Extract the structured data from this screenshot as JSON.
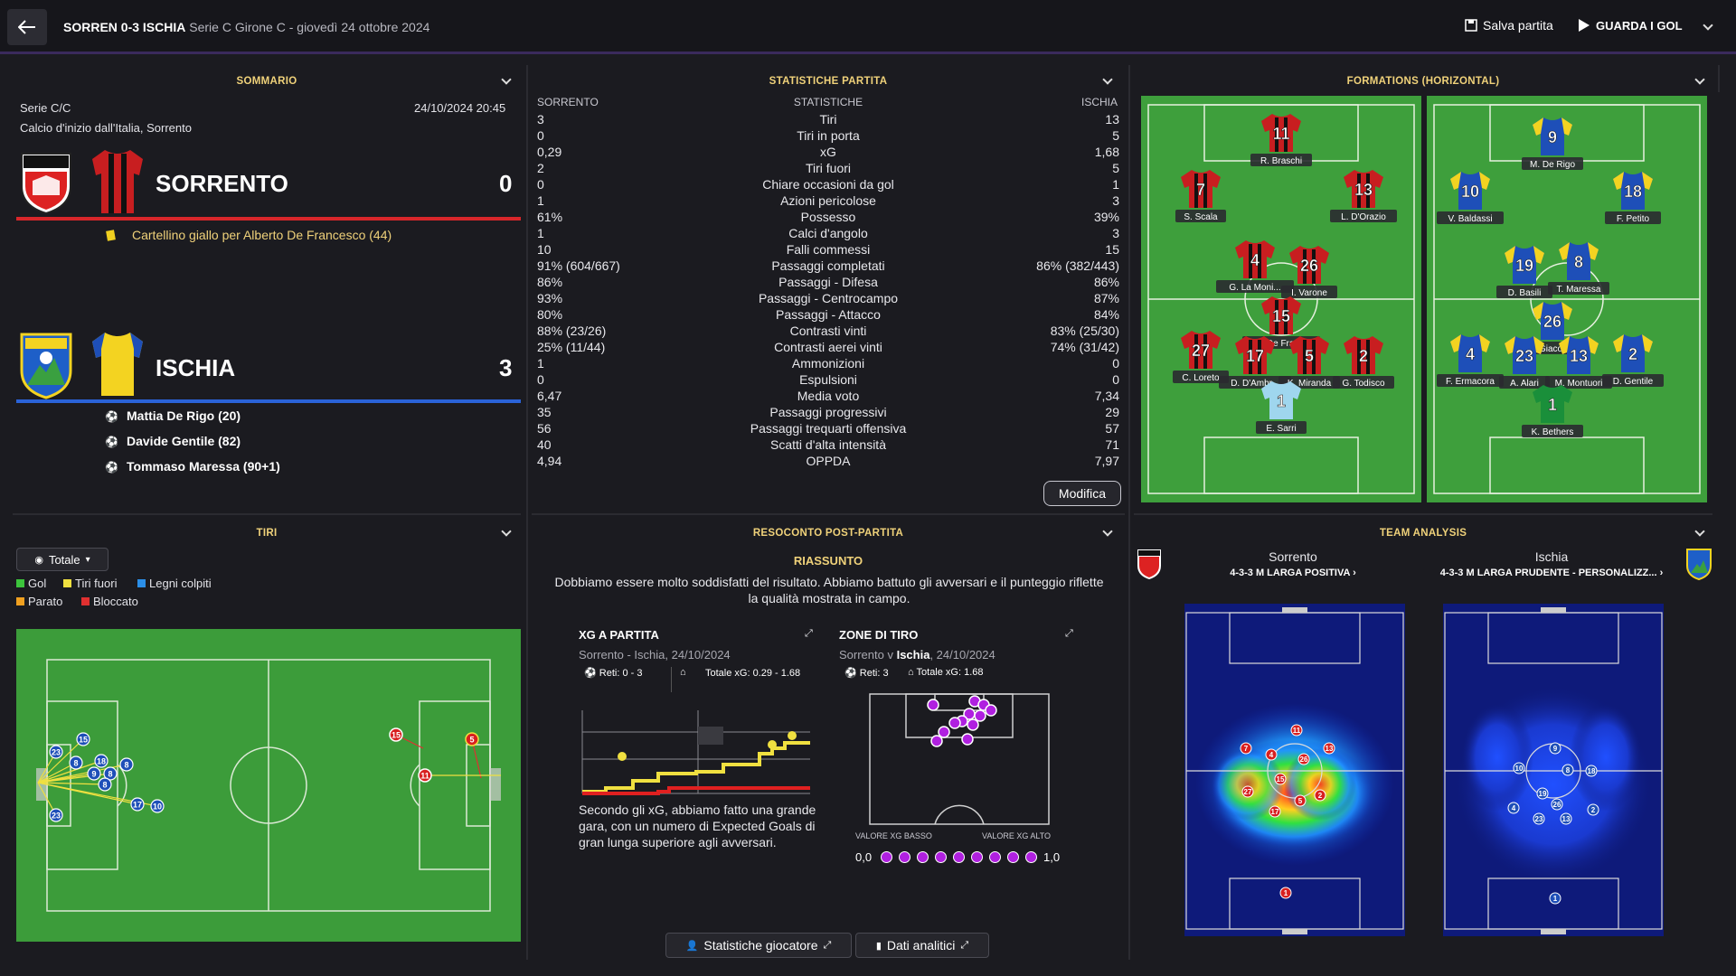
{
  "header": {
    "match": "SORREN 0-3 ISCHIA",
    "info": "Serie C Girone C - giovedì 24 ottobre 2024",
    "save": "Salva partita",
    "watch": "GUARDA I GOL"
  },
  "summary": {
    "title": "SOMMARIO",
    "league": "Serie C/C",
    "datetime": "24/10/2024 20:45",
    "kickoff": "Calcio d'inizio dall'Italia, Sorrento",
    "home": {
      "name": "SORRENTO",
      "score": "0",
      "color": "#d8262a"
    },
    "home_event": "Cartellino giallo per Alberto De Francesco (44)",
    "away": {
      "name": "ISCHIA",
      "score": "3",
      "color": "#2a63d8"
    },
    "away_goals": [
      "Mattia De Rigo (20)",
      "Davide Gentile (82)",
      "Tommaso Maressa (90+1)"
    ]
  },
  "stats": {
    "title": "STATISTICHE PARTITA",
    "col_home": "SORRENTO",
    "col_mid": "STATISTICHE",
    "col_away": "ISCHIA",
    "rows": [
      {
        "h": "3",
        "n": "Tiri",
        "a": "13"
      },
      {
        "h": "0",
        "n": "Tiri in porta",
        "a": "5"
      },
      {
        "h": "0,29",
        "n": "xG",
        "a": "1,68"
      },
      {
        "h": "2",
        "n": "Tiri fuori",
        "a": "5"
      },
      {
        "h": "0",
        "n": "Chiare occasioni da gol",
        "a": "1"
      },
      {
        "h": "1",
        "n": "Azioni pericolose",
        "a": "3"
      },
      {
        "h": "61%",
        "n": "Possesso",
        "a": "39%"
      },
      {
        "h": "1",
        "n": "Calci d'angolo",
        "a": "3"
      },
      {
        "h": "10",
        "n": "Falli commessi",
        "a": "15"
      },
      {
        "h": "91% (604/667)",
        "n": "Passaggi completati",
        "a": "86% (382/443)"
      },
      {
        "h": "86%",
        "n": "Passaggi - Difesa",
        "a": "86%"
      },
      {
        "h": "93%",
        "n": "Passaggi - Centrocampo",
        "a": "87%"
      },
      {
        "h": "80%",
        "n": "Passaggi - Attacco",
        "a": "84%"
      },
      {
        "h": "88% (23/26)",
        "n": "Contrasti vinti",
        "a": "83% (25/30)"
      },
      {
        "h": "25% (11/44)",
        "n": "Contrasti aerei vinti",
        "a": "74% (31/42)"
      },
      {
        "h": "1",
        "n": "Ammonizioni",
        "a": "0"
      },
      {
        "h": "0",
        "n": "Espulsioni",
        "a": "0"
      },
      {
        "h": "6,47",
        "n": "Media voto",
        "a": "7,34"
      },
      {
        "h": "35",
        "n": "Passaggi progressivi",
        "a": "29"
      },
      {
        "h": "56",
        "n": "Passaggi trequarti offensiva",
        "a": "57"
      },
      {
        "h": "40",
        "n": "Scatti d'alta intensità",
        "a": "71"
      },
      {
        "h": "4,94",
        "n": "OPPDA",
        "a": "7,97"
      }
    ],
    "edit": "Modifica"
  },
  "formations": {
    "title": "FORMATIONS (HORIZONTAL)",
    "home_players": [
      {
        "num": "11",
        "name": "R. Braschi"
      },
      {
        "num": "7",
        "name": "S. Scala"
      },
      {
        "num": "13",
        "name": "L. D'Orazio"
      },
      {
        "num": "4",
        "name": "G. La Moni..."
      },
      {
        "num": "26",
        "name": "I. Varone"
      },
      {
        "num": "15",
        "name": "A. De Fran..."
      },
      {
        "num": "27",
        "name": "C. Loreto"
      },
      {
        "num": "17",
        "name": "D. D'Ambr..."
      },
      {
        "num": "5",
        "name": "K. Miranda"
      },
      {
        "num": "2",
        "name": "G. Todisco"
      },
      {
        "num": "1",
        "name": "E. Sarri"
      }
    ],
    "away_players": [
      {
        "num": "9",
        "name": "M. De Rigo"
      },
      {
        "num": "10",
        "name": "V. Baldassi"
      },
      {
        "num": "18",
        "name": "F. Petito"
      },
      {
        "num": "19",
        "name": "D. Basili"
      },
      {
        "num": "8",
        "name": "T. Maressa"
      },
      {
        "num": "26",
        "name": "D. Giacom..."
      },
      {
        "num": "4",
        "name": "F. Ermacora"
      },
      {
        "num": "23",
        "name": "A. Alari"
      },
      {
        "num": "13",
        "name": "M. Montuori"
      },
      {
        "num": "2",
        "name": "D. Gentile"
      },
      {
        "num": "1",
        "name": "K. Bethers"
      }
    ]
  },
  "shots": {
    "title": "TIRI",
    "filter": "Totale",
    "legend": [
      {
        "label": "Gol",
        "color": "#3cc43c"
      },
      {
        "label": "Tiri fuori",
        "color": "#f0e040"
      },
      {
        "label": "Legni colpiti",
        "color": "#2b8fe8"
      },
      {
        "label": "Parato",
        "color": "#f0a020"
      },
      {
        "label": "Bloccato",
        "color": "#e03030"
      }
    ],
    "away_nums": [
      "15",
      "23",
      "8",
      "18",
      "8",
      "9",
      "8",
      "8",
      "17",
      "10",
      "23"
    ],
    "home_nums": [
      "15",
      "5",
      "11"
    ]
  },
  "report": {
    "title": "RESOCONTO POST-PARTITA",
    "heading": "RIASSUNTO",
    "text": "Dobbiamo essere molto soddisfatti del risultato. Abbiamo battuto gli avversari e il punteggio riflette la qualità mostrata in campo.",
    "xg": {
      "title": "XG A PARTITA",
      "sub": "Sorrento - Ischia, 24/10/2024",
      "goals": "Reti: 0 - 3",
      "total": "Totale xG: 0.29 - 1.68",
      "desc": "Secondo gli xG, abbiamo fatto una grande gara, con un numero di Expected Goals di gran lunga superiore agli avversari."
    },
    "zones": {
      "title": "ZONE DI TIRO",
      "sub_a": "Sorrento v ",
      "sub_b": "Ischia",
      "sub_c": ", 24/10/2024",
      "goals": "Reti: 3",
      "total": "Totale xG: 1.68",
      "low": "VALORE XG BASSO",
      "high": "VALORE XG ALTO",
      "min": "0,0",
      "max": "1,0"
    },
    "btn_players": "Statistiche giocatore",
    "btn_analytics": "Dati analitici"
  },
  "analysis": {
    "title": "TEAM ANALYSIS",
    "home_team": "Sorrento",
    "home_form": "4-3-3 M LARGA POSITIVA",
    "away_team": "Ischia",
    "away_form": "4-3-3 M LARGA PRUDENTE - PERSONALIZZ...",
    "home_nums": [
      "7",
      "4",
      "11",
      "26",
      "13",
      "27",
      "15",
      "2",
      "5",
      "17",
      "1"
    ],
    "away_nums": [
      "9",
      "10",
      "8",
      "18",
      "19",
      "26",
      "4",
      "23",
      "13",
      "2",
      "1"
    ]
  }
}
